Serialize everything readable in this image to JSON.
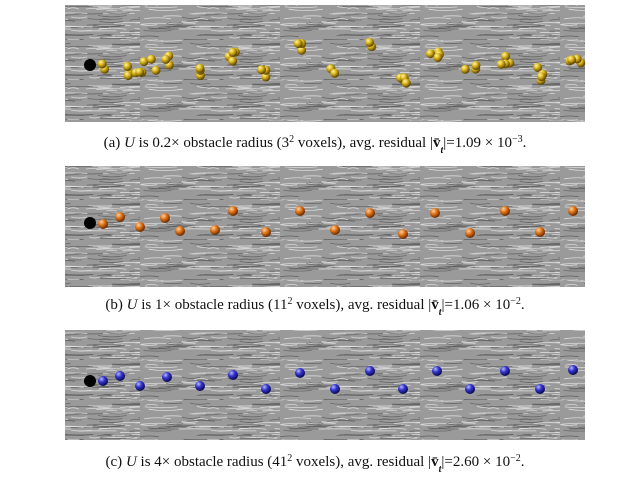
{
  "panels": [
    {
      "caption": [
        "(a) ",
        "U",
        " is 0.2× obstacle radius (3",
        "2",
        " voxels), avg. residual |",
        "v̄",
        "t",
        "|=1.09 × 10",
        "−3",
        "."
      ]
    },
    {
      "caption": [
        "(b) ",
        "U",
        " is 1× obstacle radius (11",
        "2",
        " voxels), avg. residual |",
        "v̄",
        "t",
        "|=1.06 × 10",
        "−2",
        "."
      ]
    },
    {
      "caption": [
        "(c) ",
        "U",
        " is 4× obstacle radius (41",
        "2",
        " voxels), avg. residual |",
        "v̄",
        "t",
        "|=2.60 × 10",
        "−2",
        "."
      ]
    }
  ]
}
